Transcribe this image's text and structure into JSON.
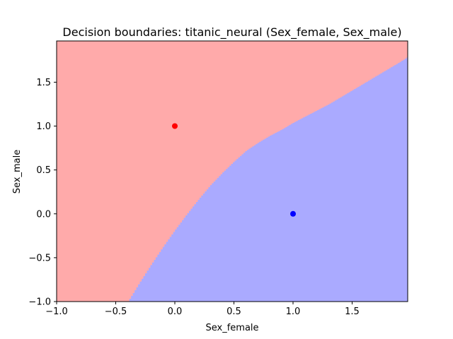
{
  "chart_data": {
    "type": "scatter",
    "title": "Decision boundaries: titanic_neural (Sex_female, Sex_male)",
    "xlabel": "Sex_female",
    "ylabel": "Sex_male",
    "xlim": [
      -1.0,
      1.97
    ],
    "ylim": [
      -1.0,
      1.97
    ],
    "xticks": [
      -1.0,
      -0.5,
      0.0,
      0.5,
      1.0,
      1.5
    ],
    "xtick_labels": [
      "−1.0",
      "−0.5",
      "0.0",
      "0.5",
      "1.0",
      "1.5"
    ],
    "yticks": [
      -1.0,
      -0.5,
      0.0,
      0.5,
      1.0,
      1.5
    ],
    "ytick_labels": [
      "−1.0",
      "−0.5",
      "0.0",
      "0.5",
      "1.0",
      "1.5"
    ],
    "grid": false,
    "regions": [
      {
        "class": "red",
        "color": "#ffaaaa"
      },
      {
        "class": "blue",
        "color": "#aaaaff"
      }
    ],
    "boundary": {
      "x": [
        -0.4,
        -0.3,
        -0.2,
        -0.1,
        0.0,
        0.1,
        0.2,
        0.3,
        0.4,
        0.5,
        0.6,
        0.7,
        0.8,
        0.9,
        1.0,
        1.1,
        1.2,
        1.3,
        1.4,
        1.5,
        1.6,
        1.7,
        1.8,
        1.9,
        1.97
      ],
      "y": [
        -1.0,
        -0.78,
        -0.57,
        -0.37,
        -0.18,
        0.0,
        0.17,
        0.33,
        0.47,
        0.6,
        0.72,
        0.81,
        0.89,
        0.96,
        1.04,
        1.11,
        1.18,
        1.25,
        1.33,
        1.41,
        1.49,
        1.57,
        1.65,
        1.73,
        1.79
      ]
    },
    "points": [
      {
        "x": 0.0,
        "y": 1.0,
        "color": "#ff0000"
      },
      {
        "x": 1.0,
        "y": 0.0,
        "color": "#0000ff"
      }
    ]
  }
}
